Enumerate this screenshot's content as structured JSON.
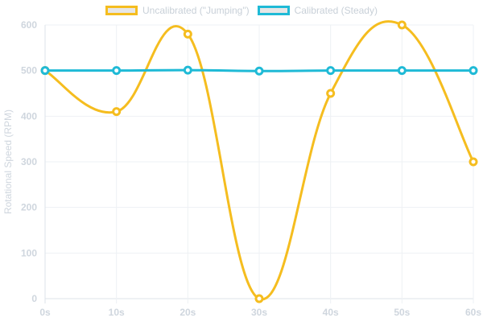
{
  "chart_data": {
    "type": "line",
    "x": [
      "0s",
      "10s",
      "20s",
      "30s",
      "40s",
      "50s",
      "60s"
    ],
    "series": [
      {
        "name": "Uncalibrated (\"Jumping\")",
        "values": [
          500,
          410,
          580,
          0,
          450,
          600,
          300
        ],
        "color": "#f5bd1f"
      },
      {
        "name": "Calibrated (Steady)",
        "values": [
          500,
          500,
          501,
          499,
          500,
          500,
          500
        ],
        "color": "#1fbad6"
      }
    ],
    "ylabel": "Rotational Speed (RPM)",
    "xlabel": "",
    "ylim": [
      0,
      600
    ],
    "yticks": [
      0,
      100,
      200,
      300,
      400,
      500,
      600
    ],
    "grid": true,
    "legend_placement": "top-center"
  }
}
